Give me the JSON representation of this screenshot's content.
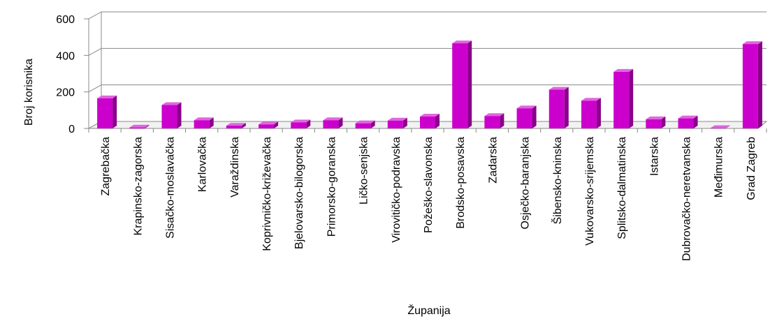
{
  "chart_data": {
    "type": "bar",
    "title": "",
    "xlabel": "Županija",
    "ylabel": "Broj korisnika",
    "ylim": [
      0,
      600
    ],
    "yticks": [
      0,
      200,
      400,
      600
    ],
    "grid": true,
    "legend": "none",
    "bar_color": "#cc00cc",
    "categories": [
      "Zagrebačka",
      "Krapinsko-zagorska",
      "Sisačko-moslavačka",
      "Karlovačka",
      "Varaždinska",
      "Koprivničko-križevačka",
      "Bjelovarsko-bilogorska",
      "Primorsko-goranska",
      "Ličko-senjska",
      "Virovitičko-podravska",
      "Požeško-slavonska",
      "Brodsko-posavska",
      "Zadarska",
      "Osječko-baranjska",
      "Šibensko-kninska",
      "Vukovarsko-srijemska",
      "Splitsko-dalmatinska",
      "Istarska",
      "Dubrovačko-neretvanska",
      "Međimurska",
      "Grad Zagreb"
    ],
    "values": [
      165,
      5,
      128,
      45,
      15,
      22,
      33,
      45,
      28,
      43,
      65,
      466,
      68,
      110,
      212,
      152,
      310,
      50,
      55,
      2,
      462
    ]
  }
}
